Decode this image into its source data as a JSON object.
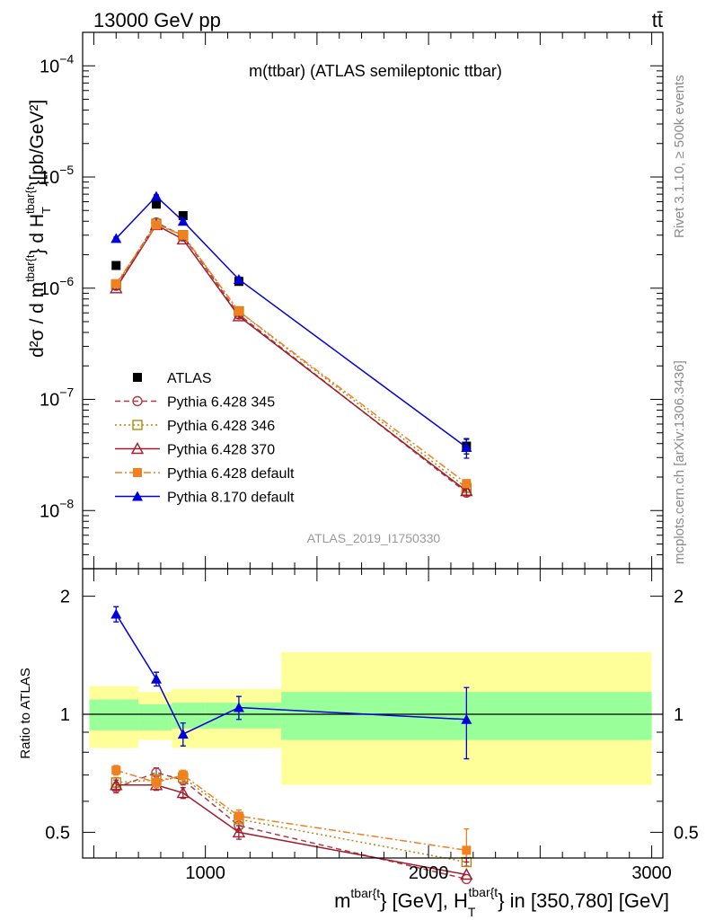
{
  "header": {
    "energy_label": "13000 GeV pp",
    "process_label": "tt̄"
  },
  "side_labels": {
    "rivet": "Rivet 3.1.10, ≥ 500k events",
    "mcplots": "mcplots.cern.ch [arXiv:1306.3436]"
  },
  "chart_data": [
    {
      "type": "line",
      "panel": "main",
      "title": "m(ttbar) (ATLAS semileptonic ttbar)",
      "watermark": "ATLAS_2019_I1750330",
      "ylabel": {
        "d2": "d²σ / d m",
        "sup1": "tbar{t",
        "mid": "} d H",
        "sub": "T",
        "sup2": "tbar{t",
        "unit": "}[pb/GeV²]"
      },
      "y_scale": "log",
      "ylim": [
        3e-09,
        0.0002
      ],
      "xlim": [
        450,
        3050
      ],
      "y_tick_labels": [
        {
          "value": 1e-08,
          "base": "10",
          "exp": "−8"
        },
        {
          "value": 1e-07,
          "base": "10",
          "exp": "−7"
        },
        {
          "value": 1e-06,
          "base": "10",
          "exp": "−6"
        },
        {
          "value": 1e-05,
          "base": "10",
          "exp": "−5"
        },
        {
          "value": 0.0001,
          "base": "10",
          "exp": "−4"
        }
      ],
      "legend_position": "lower-left",
      "series": [
        {
          "name": "ATLAS",
          "color": "#000000",
          "marker": "filled-square",
          "line": "none",
          "x": [
            600,
            780,
            900,
            1150,
            2170
          ],
          "y": [
            1.6e-06,
            5.7e-06,
            4.5e-06,
            1.15e-06,
            3.8e-08
          ],
          "err_rel": [
            0.0,
            0.0,
            0.0,
            0.0,
            0.15
          ]
        },
        {
          "name": "Pythia 6.428 345",
          "color": "#b03a48",
          "marker": "open-circle",
          "line": "dashed",
          "x": [
            600,
            780,
            900,
            1150,
            2170
          ],
          "y": [
            1.05e-06,
            3.9e-06,
            2.95e-06,
            5.8e-07,
            1.45e-08
          ],
          "err_rel": [
            0.03,
            0.03,
            0.03,
            0.04,
            0.08
          ]
        },
        {
          "name": "Pythia 6.428 346",
          "color": "#b8860b",
          "marker": "open-square",
          "line": "dotted",
          "x": [
            600,
            780,
            900,
            1150,
            2170
          ],
          "y": [
            1.08e-06,
            3.8e-06,
            3e-06,
            6.2e-07,
            1.6e-08
          ],
          "err_rel": [
            0.03,
            0.03,
            0.03,
            0.04,
            0.08
          ]
        },
        {
          "name": "Pythia 6.428 370",
          "color": "#a01c2c",
          "marker": "open-triangle",
          "line": "solid",
          "x": [
            600,
            780,
            900,
            1150,
            2170
          ],
          "y": [
            1e-06,
            3.7e-06,
            2.75e-06,
            5.6e-07,
            1.5e-08
          ],
          "err_rel": [
            0.03,
            0.03,
            0.03,
            0.04,
            0.08
          ]
        },
        {
          "name": "Pythia 6.428 default",
          "color": "#f08020",
          "marker": "filled-square",
          "line": "dashdot",
          "x": [
            600,
            780,
            900,
            1150,
            2170
          ],
          "y": [
            1.1e-06,
            3.7e-06,
            3e-06,
            6.2e-07,
            1.75e-08
          ],
          "err_rel": [
            0.03,
            0.03,
            0.03,
            0.04,
            0.08
          ]
        },
        {
          "name": "Pythia 8.170 default",
          "color": "#0000dd",
          "marker": "filled-triangle",
          "line": "solid",
          "x": [
            600,
            780,
            900,
            1150,
            2170
          ],
          "y": [
            2.8e-06,
            6.7e-06,
            4e-06,
            1.2e-06,
            3.7e-08
          ],
          "err_rel": [
            0.03,
            0.03,
            0.03,
            0.05,
            0.2
          ]
        }
      ]
    },
    {
      "type": "line",
      "panel": "ratio",
      "ylabel": "Ratio to ATLAS",
      "xlabel": {
        "a": "m",
        "a_sup": "tbar{t",
        "b": "} [GeV], H",
        "b_sub": "T",
        "b_sup": "tbar{t",
        "c": "} in [350,780] [GeV]"
      },
      "y_scale": "log",
      "ylim": [
        0.43,
        2.35
      ],
      "xlim": [
        450,
        3050
      ],
      "x_tick_labels": [
        {
          "value": 1000,
          "label": "1000"
        },
        {
          "value": 2000,
          "label": "2000"
        },
        {
          "value": 3000,
          "label": "3000"
        }
      ],
      "y_tick_labels": [
        {
          "value": 0.5,
          "label": "0.5"
        },
        {
          "value": 1,
          "label": "1"
        },
        {
          "value": 2,
          "label": "2"
        }
      ],
      "bands": [
        {
          "x0": 480,
          "x1": 700,
          "inner": [
            0.91,
            1.09
          ],
          "outer": [
            0.82,
            1.18
          ]
        },
        {
          "x0": 700,
          "x1": 850,
          "inner": [
            0.91,
            1.06
          ],
          "outer": [
            0.86,
            1.14
          ]
        },
        {
          "x0": 850,
          "x1": 1000,
          "inner": [
            0.92,
            1.07
          ],
          "outer": [
            0.82,
            1.16
          ]
        },
        {
          "x0": 1000,
          "x1": 1340,
          "inner": [
            0.92,
            1.07
          ],
          "outer": [
            0.82,
            1.16
          ]
        },
        {
          "x0": 1340,
          "x1": 3000,
          "inner": [
            0.86,
            1.14
          ],
          "outer": [
            0.66,
            1.44
          ]
        }
      ],
      "band_colors": {
        "inner": "#99ff99",
        "outer": "#ffff99"
      },
      "series": [
        {
          "name": "Pythia 6.428 345",
          "color": "#b03a48",
          "marker": "open-circle",
          "line": "dashed",
          "x": [
            600,
            780,
            900,
            1150,
            2170
          ],
          "y": [
            0.65,
            0.71,
            0.68,
            0.52,
            0.38
          ],
          "err": [
            0.02,
            0.02,
            0.02,
            0.02,
            0.03
          ]
        },
        {
          "name": "Pythia 6.428 346",
          "color": "#b8860b",
          "marker": "open-square",
          "line": "dotted",
          "x": [
            600,
            780,
            900,
            1150,
            2170
          ],
          "y": [
            0.67,
            0.68,
            0.69,
            0.54,
            0.42
          ],
          "err": [
            0.02,
            0.02,
            0.02,
            0.02,
            0.03
          ]
        },
        {
          "name": "Pythia 6.428 370",
          "color": "#a01c2c",
          "marker": "open-triangle",
          "line": "solid",
          "x": [
            600,
            780,
            900,
            1150,
            2170
          ],
          "y": [
            0.66,
            0.66,
            0.63,
            0.5,
            0.39
          ],
          "err": [
            0.02,
            0.02,
            0.02,
            0.02,
            0.03
          ]
        },
        {
          "name": "Pythia 6.428 default",
          "color": "#f08020",
          "marker": "filled-square",
          "line": "dashdot",
          "x": [
            600,
            780,
            900,
            1150,
            2170
          ],
          "y": [
            0.72,
            0.67,
            0.7,
            0.55,
            0.45
          ],
          "err": [
            0.02,
            0.02,
            0.02,
            0.02,
            0.06
          ]
        },
        {
          "name": "Pythia 8.170 default",
          "color": "#0000dd",
          "marker": "filled-triangle",
          "line": "solid",
          "x": [
            600,
            780,
            900,
            1150,
            2170
          ],
          "y": [
            1.8,
            1.23,
            0.89,
            1.04,
            0.97
          ],
          "err": [
            0.08,
            0.05,
            0.06,
            0.07,
            0.2
          ]
        }
      ]
    }
  ]
}
